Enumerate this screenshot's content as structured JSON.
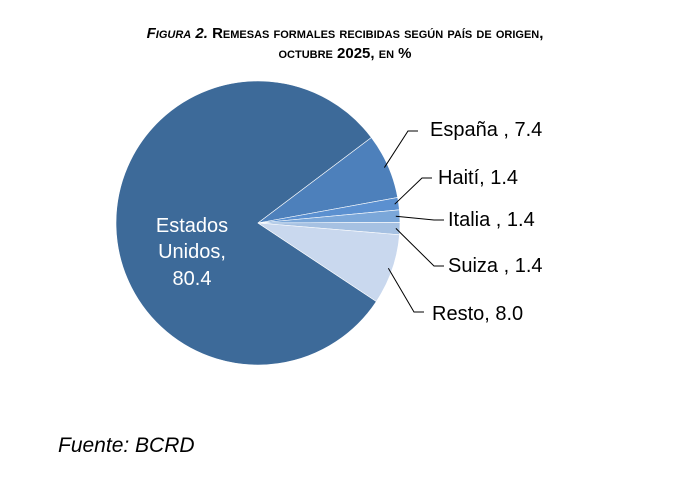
{
  "chart_data": {
    "type": "pie",
    "title_prefix": "Figura 2.",
    "title_line1": "Remesas formales recibidas según país de origen,",
    "title_line2": "octubre 2025, en %",
    "slices": [
      {
        "name": "Estados Unidos",
        "value": 80.4,
        "label": "Estados Unidos, 80.4",
        "color": "#3d6a99"
      },
      {
        "name": "España",
        "value": 7.4,
        "label": "España , 7.4",
        "color": "#4d80bb"
      },
      {
        "name": "Haití",
        "value": 1.4,
        "label": "Haití, 1.4",
        "color": "#5b90d0"
      },
      {
        "name": "Italia",
        "value": 1.4,
        "label": "Italia , 1.4",
        "color": "#7ba7d9"
      },
      {
        "name": "Suiza",
        "value": 1.4,
        "label": "Suiza , 1.4",
        "color": "#a6c1e2"
      },
      {
        "name": "Resto",
        "value": 8.0,
        "label": "Resto, 8.0",
        "color": "#c9d8ee"
      }
    ],
    "source": "Fuente: BCRD"
  }
}
